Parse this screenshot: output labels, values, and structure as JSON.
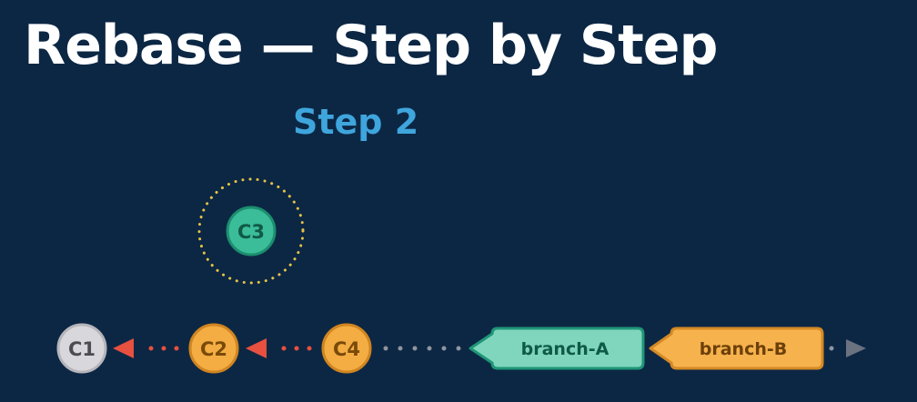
{
  "slide": {
    "title": "Rebase — Step by Step",
    "step": "Step 2"
  },
  "colors": {
    "background": "#0c2744",
    "title": "#ffffff",
    "step": "#3fa5dd",
    "commit_gray_fill": "#d8d8dc",
    "commit_gray_stroke": "#b5b5bb",
    "commit_gray_text": "#4b4b52",
    "commit_orange_fill": "#f4ad43",
    "commit_orange_stroke": "#d08520",
    "commit_orange_text": "#7a4a09",
    "commit_green_fill": "#3bbd9a",
    "commit_green_stroke": "#1b8e6f",
    "commit_green_text": "#105a46",
    "branch_green_fill": "#7fd6bc",
    "branch_green_stroke": "#1f9677",
    "branch_green_text": "#0f5a46",
    "branch_orange_fill": "#f6b24d",
    "branch_orange_stroke": "#d48a25",
    "branch_orange_text": "#6d400a",
    "arrow_red": "#e8503f",
    "dot_red": "#e8503f",
    "dot_gray": "#8f95a0",
    "halo_dots": "#e7c445",
    "end_arrow": "#6b7280"
  },
  "commits": [
    {
      "id": "c1",
      "label": "C1",
      "style": "gray"
    },
    {
      "id": "c2",
      "label": "C2",
      "style": "orange"
    },
    {
      "id": "c4",
      "label": "C4",
      "style": "orange"
    },
    {
      "id": "c3",
      "label": "C3",
      "style": "green",
      "detached": true
    }
  ],
  "branches": [
    {
      "id": "branch-a",
      "label": "branch-A",
      "style": "green"
    },
    {
      "id": "branch-b",
      "label": "branch-B",
      "style": "orange"
    }
  ]
}
